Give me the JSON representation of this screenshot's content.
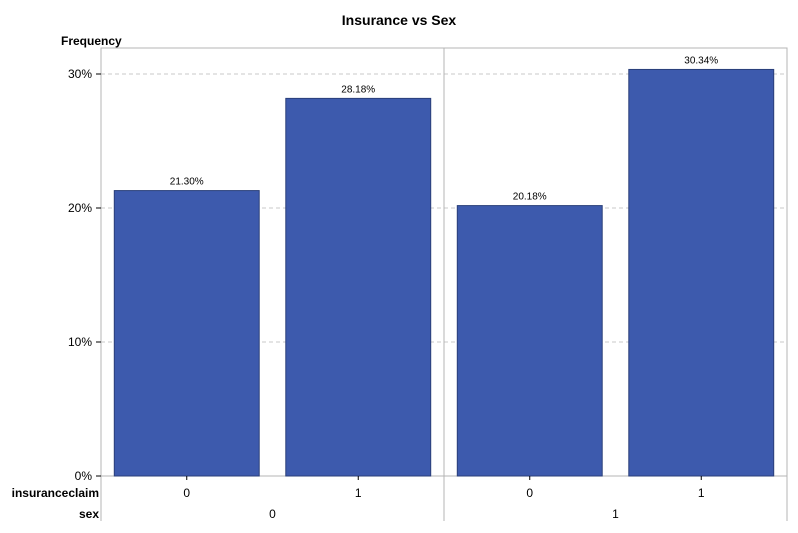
{
  "chart_data": {
    "type": "bar",
    "title": "Insurance vs Sex",
    "ylabel": "Frequency",
    "ylim": [
      0,
      30
    ],
    "yticks": [
      "0%",
      "10%",
      "20%",
      "30%"
    ],
    "grid": true,
    "row_labels": {
      "inner": "insuranceclaim",
      "outer": "sex"
    },
    "groups": [
      {
        "label": "0",
        "categories": [
          "0",
          "1"
        ],
        "values": [
          21.3,
          28.18
        ],
        "value_labels": [
          "21.30%",
          "28.18%"
        ]
      },
      {
        "label": "1",
        "categories": [
          "0",
          "1"
        ],
        "values": [
          20.18,
          30.34
        ],
        "value_labels": [
          "20.18%",
          "30.34%"
        ]
      }
    ],
    "colors": {
      "bar": "#3d5aad",
      "bar_edge": "#2a3f7a",
      "grid": "#c8c8c8",
      "frame": "#b4b4b4"
    }
  }
}
